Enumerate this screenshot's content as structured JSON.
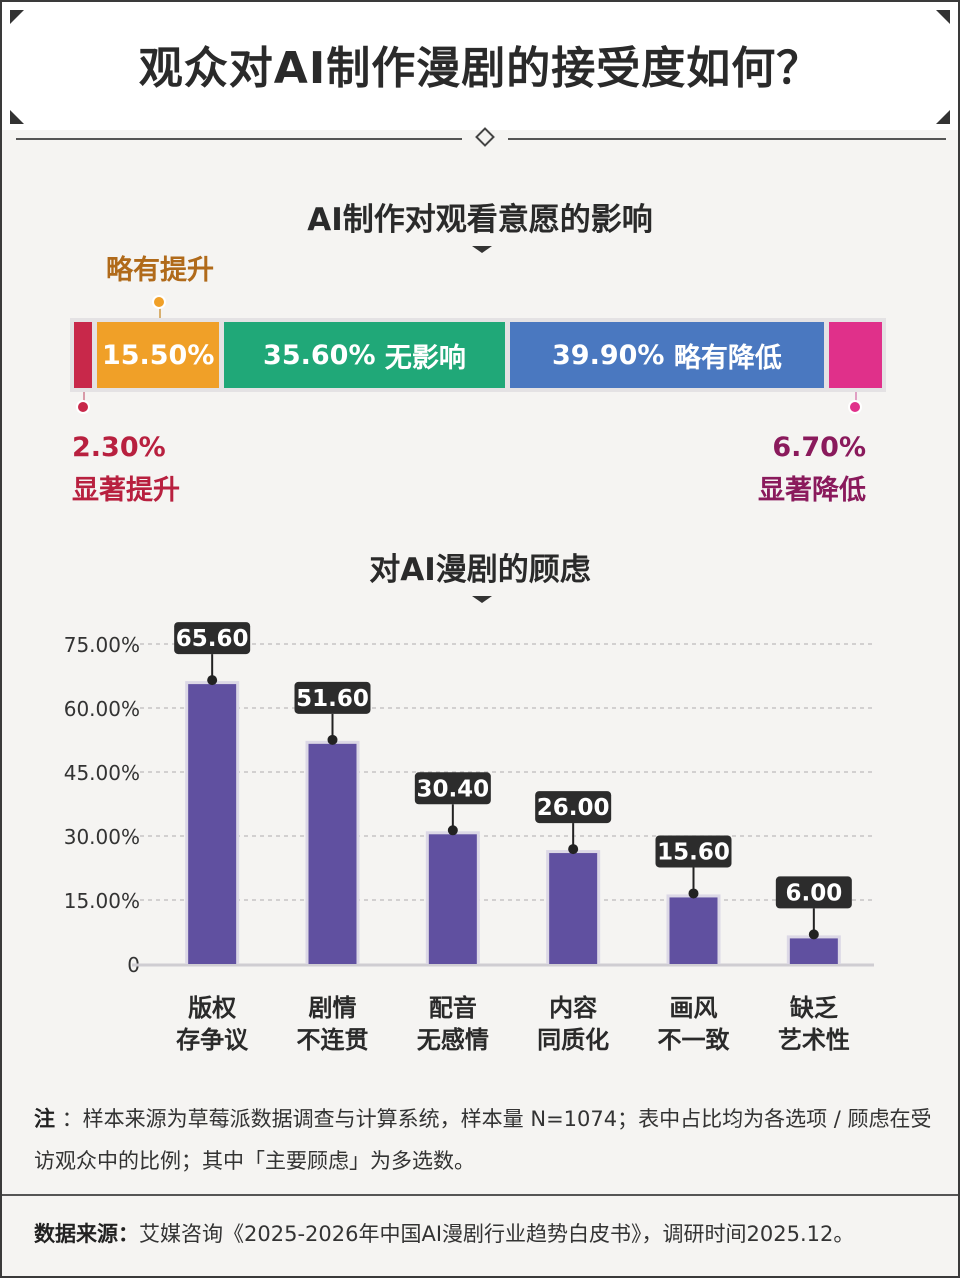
{
  "title": "观众对AI制作漫剧的接受度如何？",
  "colors": {
    "significant_up": "#c8284a",
    "slight_up": "#f0a028",
    "no_effect": "#20a878",
    "slight_down": "#4a78c0",
    "significant_down": "#e0308a",
    "bar": "#6050a0"
  },
  "chart_data": [
    {
      "type": "bar",
      "orientation": "horizontal-stacked",
      "title": "AI制作对观看意愿的影响",
      "series": [
        {
          "name": "显著提升",
          "value": 2.3,
          "label": "2.30%"
        },
        {
          "name": "略有提升",
          "value": 15.5,
          "label": "15.50%"
        },
        {
          "name": "无影响",
          "value": 35.6,
          "label": "35.60%"
        },
        {
          "name": "略有降低",
          "value": 39.9,
          "label": "39.90%"
        },
        {
          "name": "显著降低",
          "value": 6.7,
          "label": "6.70%"
        }
      ]
    },
    {
      "type": "bar",
      "title": "对AI漫剧的顾虑",
      "categories": [
        [
          "版权",
          "存争议"
        ],
        [
          "剧情",
          "不连贯"
        ],
        [
          "配音",
          "无感情"
        ],
        [
          "内容",
          "同质化"
        ],
        [
          "画风",
          "不一致"
        ],
        [
          "缺乏",
          "艺术性"
        ]
      ],
      "values": [
        65.6,
        51.6,
        30.4,
        26.0,
        15.6,
        6.0
      ],
      "value_labels": [
        "65.60",
        "51.60",
        "30.40",
        "26.00",
        "15.60",
        "6.00"
      ],
      "yticks": [
        0,
        15,
        30,
        45,
        60,
        75
      ],
      "ytick_labels": [
        "0",
        "15.00%",
        "30.00%",
        "45.00%",
        "60.00%",
        "75.00%"
      ],
      "ylim": [
        0,
        75
      ],
      "grid": true
    }
  ],
  "note": {
    "label": "注",
    "text": "：样本来源为草莓派数据调查与计算系统，样本量 N=1074；表中占比均为各选项 / 顾虑在受访观众中的比例；其中「主要顾虑」为多选数。"
  },
  "source": {
    "label": "数据来源：",
    "text": "艾媒咨询《2025-2026年中国AI漫剧行业趋势白皮书》，调研时间2025.12。"
  }
}
